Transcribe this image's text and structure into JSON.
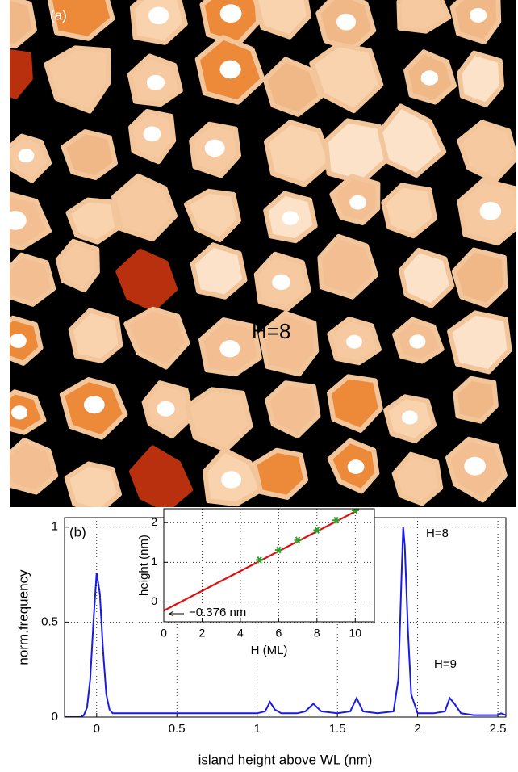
{
  "panel_a": {
    "label": "(a)",
    "annotation": "H=8"
  },
  "chart_data": [
    {
      "type": "line",
      "panel_label": "(b)",
      "xlabel": "island height above WL (nm)",
      "ylabel": "norm.frequency",
      "x": [
        -0.2,
        -0.1,
        -0.08,
        -0.06,
        -0.04,
        -0.02,
        0,
        0.02,
        0.04,
        0.06,
        0.08,
        0.1,
        0.15,
        0.3,
        0.5,
        0.7,
        0.9,
        1.0,
        1.05,
        1.08,
        1.11,
        1.15,
        1.25,
        1.3,
        1.35,
        1.4,
        1.5,
        1.58,
        1.62,
        1.66,
        1.75,
        1.85,
        1.88,
        1.9,
        1.91,
        1.92,
        1.94,
        1.96,
        2.0,
        2.1,
        2.17,
        2.2,
        2.23,
        2.27,
        2.35,
        2.45,
        2.5,
        2.52,
        2.55
      ],
      "series": [
        {
          "color": "#1a1ae6",
          "values": [
            0,
            0,
            0.01,
            0.05,
            0.2,
            0.5,
            0.76,
            0.65,
            0.35,
            0.12,
            0.04,
            0.02,
            0.02,
            0.02,
            0.02,
            0.02,
            0.02,
            0.02,
            0.03,
            0.08,
            0.04,
            0.02,
            0.02,
            0.03,
            0.07,
            0.03,
            0.02,
            0.03,
            0.1,
            0.03,
            0.02,
            0.03,
            0.2,
            0.75,
            1.0,
            0.9,
            0.45,
            0.12,
            0.02,
            0.02,
            0.03,
            0.1,
            0.07,
            0.02,
            0.01,
            0.01,
            0.01,
            0.02,
            0.01
          ]
        }
      ],
      "annotations": [
        "H=8",
        "H=9"
      ],
      "xlim": [
        -0.2,
        2.55
      ],
      "ylim": [
        0,
        1.05
      ],
      "xticks": [
        0,
        0.5,
        1,
        1.5,
        2,
        2.5
      ],
      "yticks": [
        0,
        0.5,
        1
      ],
      "grid": true
    },
    {
      "type": "scatter",
      "xlabel": "H (ML)",
      "ylabel": "height (nm)",
      "x": [
        5,
        6,
        7,
        8,
        9,
        10
      ],
      "series": [
        {
          "color": "#2ca02c",
          "values": [
            1.06,
            1.31,
            1.56,
            1.81,
            2.06,
            2.31
          ]
        }
      ],
      "fit": {
        "color": "#e01010",
        "x": [
          0,
          10.2
        ],
        "values": [
          -0.22,
          2.33
        ]
      },
      "annotation": "−0.376 nm",
      "xlim": [
        0,
        11
      ],
      "ylim": [
        -0.5,
        2.35
      ],
      "xticks": [
        0,
        2,
        4,
        6,
        8,
        10
      ],
      "yticks": [
        0,
        1,
        2
      ],
      "grid": true
    }
  ]
}
